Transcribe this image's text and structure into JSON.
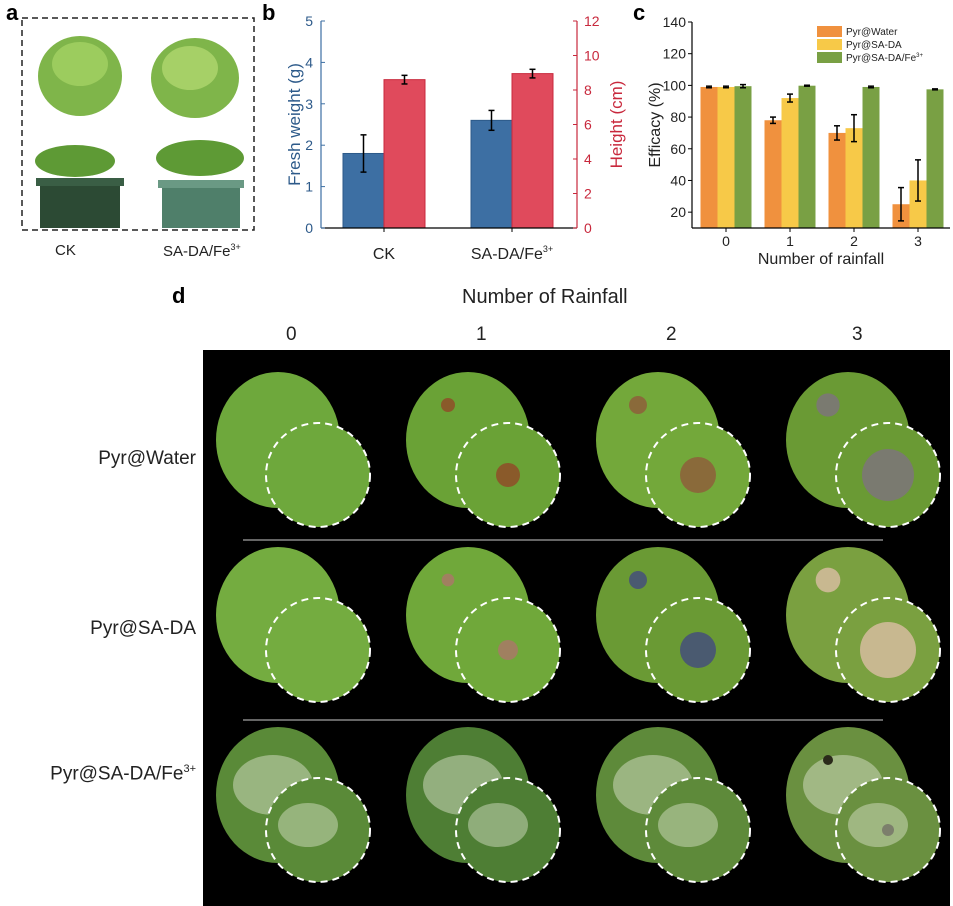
{
  "panel_labels": {
    "a": "a",
    "b": "b",
    "c": "c",
    "d": "d"
  },
  "panel_a": {
    "labels": [
      "CK",
      "SA-DA/Fe3+"
    ],
    "label_main": [
      "CK",
      "SA-DA/Fe"
    ],
    "label_sup": [
      "",
      "3+"
    ]
  },
  "chart_data": [
    {
      "type": "bar",
      "panel": "b",
      "categories": [
        "CK",
        "SA-DA/Fe3+"
      ],
      "category_main": [
        "CK",
        "SA-DA/Fe"
      ],
      "category_sup": [
        "",
        "3+"
      ],
      "ylabel": "Fresh weight (g)",
      "ylabel2": "Height (cm)",
      "ylim": [
        0,
        5
      ],
      "ylim2": [
        0,
        12
      ],
      "yticks": [
        0,
        1,
        2,
        3,
        4,
        5
      ],
      "yticks2": [
        0,
        2,
        4,
        6,
        8,
        10,
        12
      ],
      "series": [
        {
          "axis": "left",
          "color": "#3d6fa3",
          "values": [
            1.8,
            2.6
          ],
          "errors": [
            0.45,
            0.24
          ]
        },
        {
          "axis": "right",
          "color": "#e04a5c",
          "values": [
            8.6,
            8.95
          ],
          "errors": [
            0.25,
            0.25
          ]
        }
      ],
      "grid": false
    },
    {
      "type": "bar",
      "panel": "c",
      "categories": [
        "0",
        "1",
        "2",
        "3"
      ],
      "xlabel": "Number of rainfall",
      "ylabel": "Efficacy (%)",
      "ylim": [
        10,
        140
      ],
      "yticks": [
        20,
        40,
        60,
        80,
        100,
        120,
        140
      ],
      "legend": "top-right",
      "series": [
        {
          "name": "Pyr@Water",
          "color": "#f0913e",
          "values": [
            99,
            78,
            70,
            25
          ],
          "errors": [
            0.5,
            2,
            4.5,
            10.5
          ]
        },
        {
          "name": "Pyr@SA-DA",
          "color": "#f7c948",
          "values": [
            99,
            92,
            73,
            40
          ],
          "errors": [
            0.5,
            2.5,
            8.5,
            13
          ]
        },
        {
          "name": "Pyr@SA-DA/Fe3+",
          "color": "#79a044",
          "values": [
            99.5,
            99.8,
            99,
            97.5
          ],
          "errors": [
            1,
            0.3,
            0.5,
            0.3
          ]
        }
      ],
      "grid": false
    }
  ],
  "panel_d": {
    "title": "Number of Rainfall",
    "columns": [
      "0",
      "1",
      "2",
      "3"
    ],
    "rows": [
      "Pyr@Water",
      "Pyr@SA-DA",
      "Pyr@SA-DA/Fe3+"
    ],
    "row_main": [
      "Pyr@Water",
      "Pyr@SA-DA",
      "Pyr@SA-DA/Fe"
    ],
    "row_sup": [
      "",
      "",
      "3+"
    ]
  }
}
